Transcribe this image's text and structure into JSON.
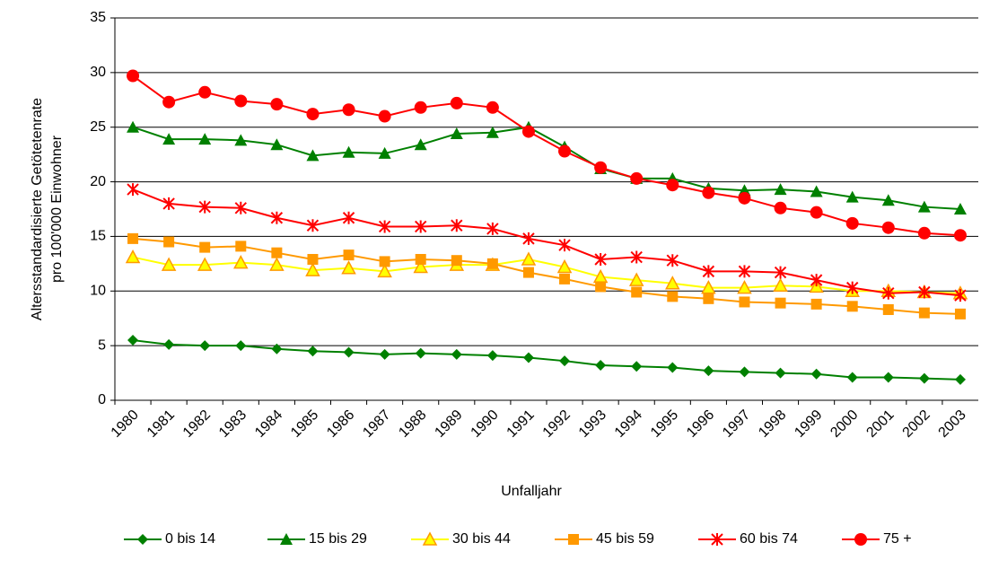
{
  "chart_data": {
    "type": "line",
    "xlabel": "Unfalljahr",
    "ylabel": [
      "Altersstandardisierte Getötetenrate",
      "pro 100'000 Einwohner"
    ],
    "categories": [
      "1980",
      "1981",
      "1982",
      "1983",
      "1984",
      "1985",
      "1986",
      "1987",
      "1988",
      "1989",
      "1990",
      "1991",
      "1992",
      "1993",
      "1994",
      "1995",
      "1996",
      "1997",
      "1998",
      "1999",
      "2000",
      "2001",
      "2002",
      "2003"
    ],
    "ylim": [
      0,
      35
    ],
    "yticks": [
      0,
      5,
      10,
      15,
      20,
      25,
      30,
      35
    ],
    "grid": true,
    "legend": "bottom",
    "series": [
      {
        "name": "0 bis 14",
        "color": "#008000",
        "marker": "diamond",
        "values": [
          5.5,
          5.1,
          5.0,
          5.0,
          4.7,
          4.5,
          4.4,
          4.2,
          4.3,
          4.2,
          4.1,
          3.9,
          3.6,
          3.2,
          3.1,
          3.0,
          2.7,
          2.6,
          2.5,
          2.4,
          2.1,
          2.1,
          2.0,
          1.9
        ]
      },
      {
        "name": "15 bis 29",
        "color": "#008000",
        "marker": "triangle",
        "values": [
          25.0,
          23.9,
          23.9,
          23.8,
          23.4,
          22.4,
          22.7,
          22.6,
          23.4,
          24.4,
          24.5,
          25.0,
          23.2,
          21.2,
          20.3,
          20.3,
          19.4,
          19.2,
          19.3,
          19.1,
          18.6,
          18.3,
          17.7,
          17.5
        ]
      },
      {
        "name": "30 bis 44",
        "color": "#ffff00",
        "marker": "triangle-open",
        "values": [
          13.1,
          12.4,
          12.4,
          12.6,
          12.4,
          11.9,
          12.1,
          11.8,
          12.2,
          12.4,
          12.4,
          12.9,
          12.2,
          11.3,
          11.0,
          10.7,
          10.3,
          10.3,
          10.5,
          10.4,
          10.0,
          10.0,
          9.9,
          9.8
        ]
      },
      {
        "name": "45 bis 59",
        "color": "#ff9900",
        "marker": "square",
        "values": [
          14.8,
          14.5,
          14.0,
          14.1,
          13.5,
          12.9,
          13.3,
          12.7,
          12.9,
          12.8,
          12.5,
          11.7,
          11.1,
          10.4,
          9.9,
          9.5,
          9.3,
          9.0,
          8.9,
          8.8,
          8.6,
          8.3,
          8.0,
          7.9
        ]
      },
      {
        "name": "60 bis 74",
        "color": "#ff0000",
        "marker": "star",
        "values": [
          19.3,
          18.0,
          17.7,
          17.6,
          16.7,
          16.0,
          16.7,
          15.9,
          15.9,
          16.0,
          15.7,
          14.8,
          14.2,
          12.9,
          13.1,
          12.8,
          11.8,
          11.8,
          11.7,
          11.0,
          10.3,
          9.8,
          9.9,
          9.6
        ]
      },
      {
        "name": "75 +",
        "color": "#ff0000",
        "marker": "circle",
        "values": [
          29.7,
          27.3,
          28.2,
          27.4,
          27.1,
          26.2,
          26.6,
          26.0,
          26.8,
          27.2,
          26.8,
          24.6,
          22.8,
          21.3,
          20.3,
          19.7,
          19.0,
          18.5,
          17.6,
          17.2,
          16.2,
          15.8,
          15.3,
          15.1
        ]
      }
    ]
  }
}
